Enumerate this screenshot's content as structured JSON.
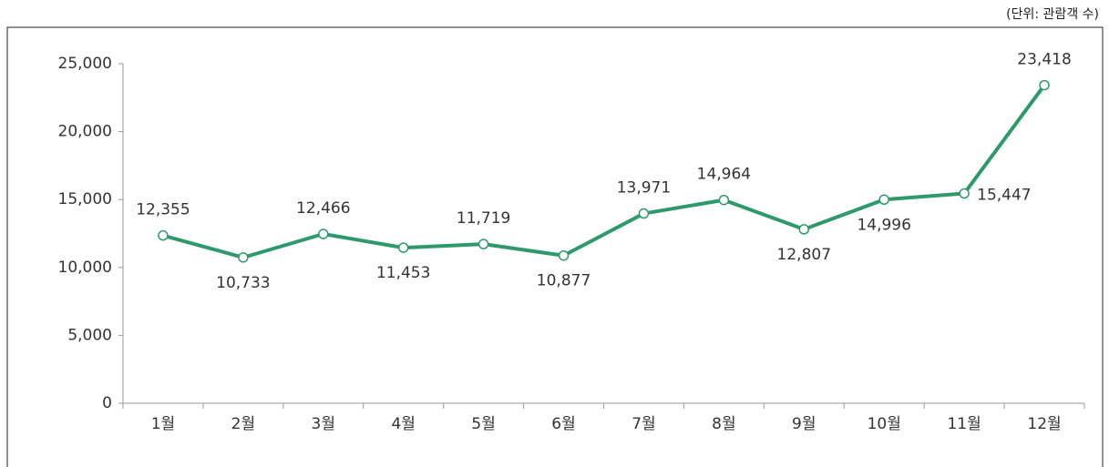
{
  "chart_data": {
    "type": "line",
    "unit_note": "(단위: 관람객 수)",
    "categories": [
      "1월",
      "2월",
      "3월",
      "4월",
      "5월",
      "6월",
      "7월",
      "8월",
      "9월",
      "10월",
      "11월",
      "12월"
    ],
    "series": [
      {
        "color": "#2e9a6c",
        "values": [
          12355,
          10733,
          12466,
          11453,
          11719,
          10877,
          13971,
          14964,
          12807,
          14996,
          15447,
          23418
        ],
        "value_labels": [
          "12,355",
          "10,733",
          "12,466",
          "11,453",
          "11,719",
          "10,877",
          "13,971",
          "14,964",
          "12,807",
          "14,996",
          "15,447",
          "23,418"
        ]
      }
    ],
    "ylim": [
      0,
      25000
    ],
    "yticks": [
      0,
      {
        "value": 5000,
        "label": "5,000"
      },
      {
        "value": 10000,
        "label": "10,000"
      },
      {
        "value": 15000,
        "label": "15,000"
      },
      {
        "value": 20000,
        "label": "20,000"
      },
      {
        "value": 25000,
        "label": "25,000"
      }
    ]
  }
}
